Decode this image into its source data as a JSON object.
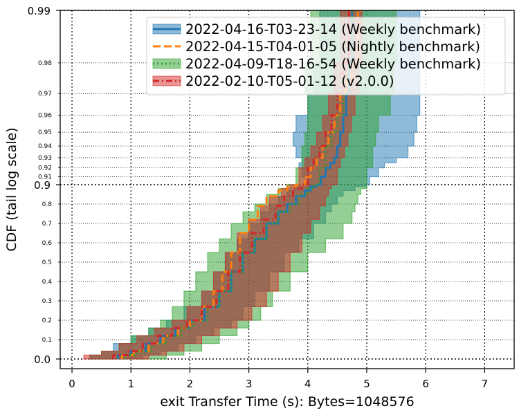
{
  "chart_data": {
    "type": "line",
    "xlabel": "exit Transfer Time (s): Bytes=1048576",
    "ylabel": "CDF (tail log scale)",
    "xlim": [
      -0.2,
      7.5
    ],
    "x_ticks": [
      0,
      1,
      2,
      3,
      4,
      5,
      6,
      7
    ],
    "y_scale": "tail-log",
    "y_major_ticks": [
      0.0,
      0.9,
      0.99
    ],
    "y_major_labels": [
      "0.0",
      "0.9",
      "0.99"
    ],
    "y_minor_ticks": [
      0.1,
      0.2,
      0.3,
      0.4,
      0.5,
      0.6,
      0.7,
      0.8,
      0.91,
      0.92,
      0.93,
      0.94,
      0.95,
      0.96,
      0.97,
      0.98
    ],
    "y_minor_labels": [
      "0.1",
      "0.2",
      "0.3",
      "0.4",
      "0.5",
      "0.6",
      "0.7",
      "0.8",
      "0.91",
      "0.92",
      "0.93",
      "0.94",
      "0.95",
      "0.96",
      "0.97",
      "0.98"
    ],
    "grid": true,
    "legend_position": "top-right",
    "series": [
      {
        "name": "2022-04-16-T03-23-14 (Weekly benchmark)",
        "color": "#1f77b4",
        "line_style": "solid",
        "x": [
          0.78,
          1.0,
          1.25,
          1.5,
          1.75,
          2.0,
          2.25,
          2.5,
          2.7,
          2.9,
          3.1,
          3.3,
          3.5,
          3.65,
          3.8,
          3.95,
          4.05,
          4.15,
          4.22,
          4.3,
          4.38,
          4.45,
          4.5,
          4.55,
          4.6,
          4.65,
          4.7,
          4.75,
          4.78
        ],
        "y": [
          0.0,
          0.02,
          0.04,
          0.08,
          0.12,
          0.16,
          0.2,
          0.27,
          0.35,
          0.45,
          0.55,
          0.62,
          0.7,
          0.76,
          0.8,
          0.84,
          0.87,
          0.89,
          0.9,
          0.91,
          0.92,
          0.925,
          0.93,
          0.94,
          0.95,
          0.96,
          0.97,
          0.98,
          0.99
        ],
        "band_lower": [
          0.3,
          0.5,
          0.7,
          1.0,
          1.3,
          1.6,
          1.9,
          2.2,
          2.4,
          2.6,
          2.8,
          3.0,
          3.2,
          3.35,
          3.5,
          3.65,
          3.8,
          3.9,
          4.0,
          3.9,
          3.85,
          3.9,
          3.8,
          3.75,
          3.8,
          4.0,
          4.1,
          4.2,
          4.25
        ],
        "band_upper": [
          1.2,
          1.5,
          1.8,
          2.1,
          2.4,
          2.7,
          2.9,
          3.1,
          3.35,
          3.6,
          3.85,
          4.1,
          4.3,
          4.4,
          4.5,
          4.6,
          4.8,
          5.0,
          5.05,
          5.2,
          5.3,
          5.5,
          5.7,
          5.8,
          5.85,
          5.9,
          5.9,
          5.9,
          5.9
        ]
      },
      {
        "name": "2022-04-15-T04-01-05 (Nightly benchmark)",
        "color": "#ff7f0e",
        "line_style": "dashed",
        "x": [
          0.85,
          1.05,
          1.3,
          1.55,
          1.8,
          2.0,
          2.2,
          2.4,
          2.55,
          2.7,
          2.85,
          3.0,
          3.15,
          3.3,
          3.5,
          3.65,
          3.8,
          3.95,
          4.05,
          4.15,
          4.25,
          4.35,
          4.45,
          4.55,
          4.65,
          4.75,
          4.85,
          4.93
        ],
        "y": [
          0.0,
          0.02,
          0.04,
          0.08,
          0.12,
          0.16,
          0.2,
          0.27,
          0.35,
          0.45,
          0.55,
          0.65,
          0.72,
          0.79,
          0.84,
          0.87,
          0.89,
          0.9,
          0.91,
          0.92,
          0.93,
          0.94,
          0.95,
          0.96,
          0.97,
          0.975,
          0.98,
          0.99
        ]
      },
      {
        "name": "2022-04-09-T18-16-54 (Weekly benchmark)",
        "color": "#2ca02c",
        "line_style": "dotted",
        "x": [
          0.9,
          1.1,
          1.35,
          1.6,
          1.85,
          2.05,
          2.3,
          2.5,
          2.7,
          2.9,
          3.1,
          3.3,
          3.5,
          3.7,
          3.85,
          4.0,
          4.1,
          4.2,
          4.3,
          4.4,
          4.5,
          4.6,
          4.7,
          4.75,
          4.8
        ],
        "y": [
          0.0,
          0.02,
          0.04,
          0.08,
          0.12,
          0.16,
          0.2,
          0.27,
          0.35,
          0.45,
          0.55,
          0.62,
          0.7,
          0.76,
          0.8,
          0.85,
          0.88,
          0.9,
          0.92,
          0.94,
          0.95,
          0.96,
          0.97,
          0.98,
          0.99
        ],
        "band_lower": [
          0.3,
          0.5,
          0.8,
          1.0,
          1.3,
          1.5,
          1.7,
          1.9,
          2.1,
          2.3,
          2.5,
          2.7,
          2.9,
          3.1,
          3.3,
          3.5,
          3.65,
          3.8,
          3.9,
          3.95,
          4.0,
          4.0,
          3.95,
          4.05,
          4.1
        ],
        "band_upper": [
          1.6,
          1.9,
          2.2,
          2.5,
          2.8,
          3.0,
          3.2,
          3.4,
          3.7,
          4.0,
          4.3,
          4.6,
          4.75,
          4.8,
          4.85,
          4.9,
          5.0,
          5.0,
          5.1,
          5.15,
          5.2,
          5.4,
          5.45,
          5.5,
          5.55
        ]
      },
      {
        "name": "2022-02-10-T05-01-12 (v2.0.0)",
        "color": "#d62728",
        "line_style": "dashdot",
        "x": [
          0.7,
          0.95,
          1.2,
          1.45,
          1.7,
          1.95,
          2.2,
          2.45,
          2.65,
          2.85,
          3.05,
          3.25,
          3.45,
          3.6,
          3.75,
          3.9,
          4.0,
          4.1,
          4.2,
          4.3,
          4.4,
          4.5,
          4.6,
          4.7,
          4.78
        ],
        "y": [
          0.0,
          0.02,
          0.04,
          0.08,
          0.12,
          0.16,
          0.2,
          0.27,
          0.35,
          0.45,
          0.55,
          0.65,
          0.72,
          0.79,
          0.84,
          0.88,
          0.9,
          0.92,
          0.93,
          0.94,
          0.95,
          0.96,
          0.97,
          0.98,
          0.99
        ],
        "band_lower": [
          0.2,
          0.5,
          0.8,
          1.1,
          1.4,
          1.7,
          1.95,
          2.2,
          2.4,
          2.6,
          2.8,
          3.0,
          3.2,
          3.35,
          3.55,
          3.7,
          3.85,
          3.95,
          4.05,
          4.15,
          4.25,
          4.35,
          4.45,
          4.55,
          4.6
        ],
        "band_upper": [
          1.3,
          1.6,
          1.9,
          2.2,
          2.5,
          2.8,
          3.05,
          3.3,
          3.5,
          3.7,
          3.9,
          4.05,
          4.2,
          4.3,
          4.35,
          4.4,
          4.5,
          4.55,
          4.62,
          4.68,
          4.74,
          4.8,
          4.86,
          4.92,
          4.98
        ]
      }
    ]
  }
}
